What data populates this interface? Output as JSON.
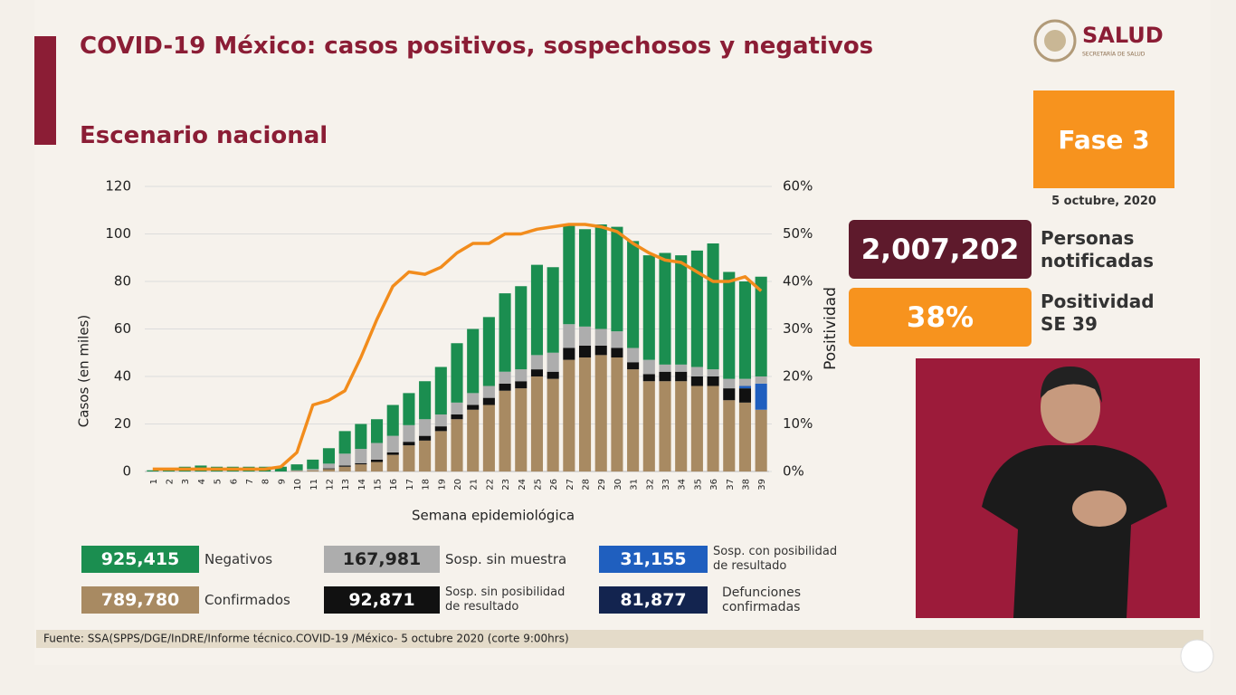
{
  "header": {
    "title": "COVID-19 México: casos positivos, sospechosos y negativos",
    "subtitle": "Escenario nacional",
    "logo": "SALUD",
    "logo_sub": "SECRETARÍA DE SALUD"
  },
  "panel": {
    "phase": "Fase 3",
    "date": "5 octubre, 2020",
    "notified_value": "2,007,202",
    "notified_label": "Personas notificadas",
    "positivity_value": "38%",
    "positivity_label": "Positividad SE 39"
  },
  "deaths": {
    "total": "81,877",
    "label": "Defunciones confirmadas",
    "color": "#13244f"
  },
  "footer": "Fuente: SSA(SPPS/DGE/InDRE/Informe técnico.COVID-19 /México- 5 octubre 2020 (corte 9:00hrs)",
  "chart_data": {
    "type": "bar",
    "stacked": true,
    "x_label": "Semana epidemiológica",
    "y_label": "Casos (en miles)",
    "y2_label": "Positividad",
    "categories": [
      "1",
      "2",
      "3",
      "4",
      "5",
      "6",
      "7",
      "8",
      "9",
      "10",
      "11",
      "12",
      "13",
      "14",
      "15",
      "16",
      "17",
      "18",
      "19",
      "20",
      "21",
      "22",
      "23",
      "24",
      "25",
      "26",
      "27",
      "28",
      "29",
      "30",
      "31",
      "32",
      "33",
      "34",
      "35",
      "36",
      "37",
      "38",
      "39"
    ],
    "ylim": [
      0,
      120
    ],
    "yticks": [
      0,
      20,
      40,
      60,
      80,
      100,
      120
    ],
    "y2lim": [
      0,
      60
    ],
    "y2ticks": [
      {
        "value": 0,
        "label": "0%"
      },
      {
        "value": 10,
        "label": "10%"
      },
      {
        "value": 20,
        "label": "20%"
      },
      {
        "value": 30,
        "label": "30%"
      },
      {
        "value": 40,
        "label": "40%"
      },
      {
        "value": 50,
        "label": "50%"
      },
      {
        "value": 60,
        "label": "60%"
      }
    ],
    "grid": true,
    "series": [
      {
        "name": "Confirmados",
        "total": "789,780",
        "color": "#a88a62",
        "values": [
          0,
          0,
          0,
          0,
          0,
          0,
          0,
          0,
          0,
          0.2,
          0.5,
          1,
          2,
          3,
          4,
          7,
          11,
          13,
          17,
          22,
          26,
          28,
          34,
          35,
          40,
          39,
          47,
          48,
          49,
          48,
          43,
          38,
          38,
          38,
          36,
          36,
          30,
          29,
          26
        ]
      },
      {
        "name": "Sosp. sin posibilidad de resultado",
        "total": "92,871",
        "color": "#111111",
        "values": [
          0,
          0,
          0,
          0,
          0,
          0,
          0,
          0,
          0,
          0,
          0,
          0.3,
          0.5,
          0.5,
          1,
          1,
          1.5,
          2,
          2,
          2,
          2,
          3,
          3,
          3,
          3,
          3,
          5,
          5,
          4,
          4,
          3,
          3,
          4,
          4,
          4,
          4,
          5,
          6,
          0
        ]
      },
      {
        "name": "Sosp. con posibilidad de resultado",
        "total": "31,155",
        "color": "#1f5fbf",
        "values": [
          0,
          0,
          0,
          0,
          0,
          0,
          0,
          0,
          0,
          0,
          0,
          0,
          0,
          0,
          0,
          0,
          0,
          0,
          0,
          0,
          0,
          0,
          0,
          0,
          0,
          0,
          0,
          0,
          0,
          0,
          0,
          0,
          0,
          0,
          0,
          0,
          0,
          1,
          11
        ]
      },
      {
        "name": "Sosp. sin muestra",
        "total": "167,981",
        "color": "#adadad",
        "values": [
          0,
          0,
          0,
          0,
          0,
          0,
          0,
          0,
          0,
          0.3,
          0.5,
          2,
          5,
          6,
          7,
          7,
          7,
          7,
          5,
          5,
          5,
          5,
          5,
          5,
          6,
          8,
          10,
          8,
          7,
          7,
          6,
          6,
          3,
          3,
          4,
          3,
          4,
          3,
          3
        ]
      },
      {
        "name": "Negativos",
        "total": "925,415",
        "color": "#1b8e50",
        "values": [
          0.5,
          1.5,
          2,
          2.5,
          2,
          2,
          2,
          2,
          2,
          2.5,
          4,
          6.5,
          9.5,
          10.5,
          10,
          13,
          13.5,
          16,
          20,
          25,
          27,
          29,
          33,
          35,
          38,
          36,
          42,
          41,
          44,
          44,
          45,
          44,
          47,
          46,
          49,
          53,
          45,
          41,
          42
        ]
      },
      {
        "name": "Positividad",
        "type": "line",
        "axis": "y2",
        "color": "#f28c1c",
        "values": [
          0.5,
          0.5,
          0.5,
          0.5,
          0.5,
          0.5,
          0.5,
          0.5,
          1,
          4,
          14,
          15,
          17,
          24,
          32,
          39,
          42,
          41.5,
          43,
          46,
          48,
          48,
          50,
          50,
          51,
          51.5,
          52,
          52,
          51.5,
          50.5,
          48,
          46,
          44.5,
          44,
          42,
          40,
          40,
          41,
          38
        ]
      }
    ]
  }
}
